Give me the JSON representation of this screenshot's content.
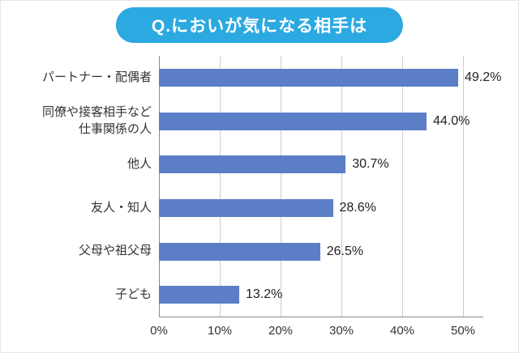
{
  "title_badge": "Q.においが気になる相手は",
  "colors": {
    "title_bg": "#2ca9e1",
    "bar": "#5b7ec6",
    "grid": "#cccccc",
    "axis": "#8a8a8a",
    "text": "#333333"
  },
  "chart_data": {
    "type": "bar",
    "orientation": "horizontal",
    "title": "Q.においが気になる相手は",
    "categories": [
      "パートナー・配偶者",
      "同僚や接客相手など\n仕事関係の人",
      "他人",
      "友人・知人",
      "父母や祖父母",
      "子ども"
    ],
    "values": [
      49.2,
      44.0,
      30.7,
      28.6,
      26.5,
      13.2
    ],
    "value_labels": [
      "49.2%",
      "44.0%",
      "30.7%",
      "28.6%",
      "26.5%",
      "13.2%"
    ],
    "x_ticks": [
      "0%",
      "10%",
      "20%",
      "30%",
      "40%",
      "50%"
    ],
    "xlim": [
      0,
      50
    ],
    "grid": true,
    "legend": "none"
  }
}
